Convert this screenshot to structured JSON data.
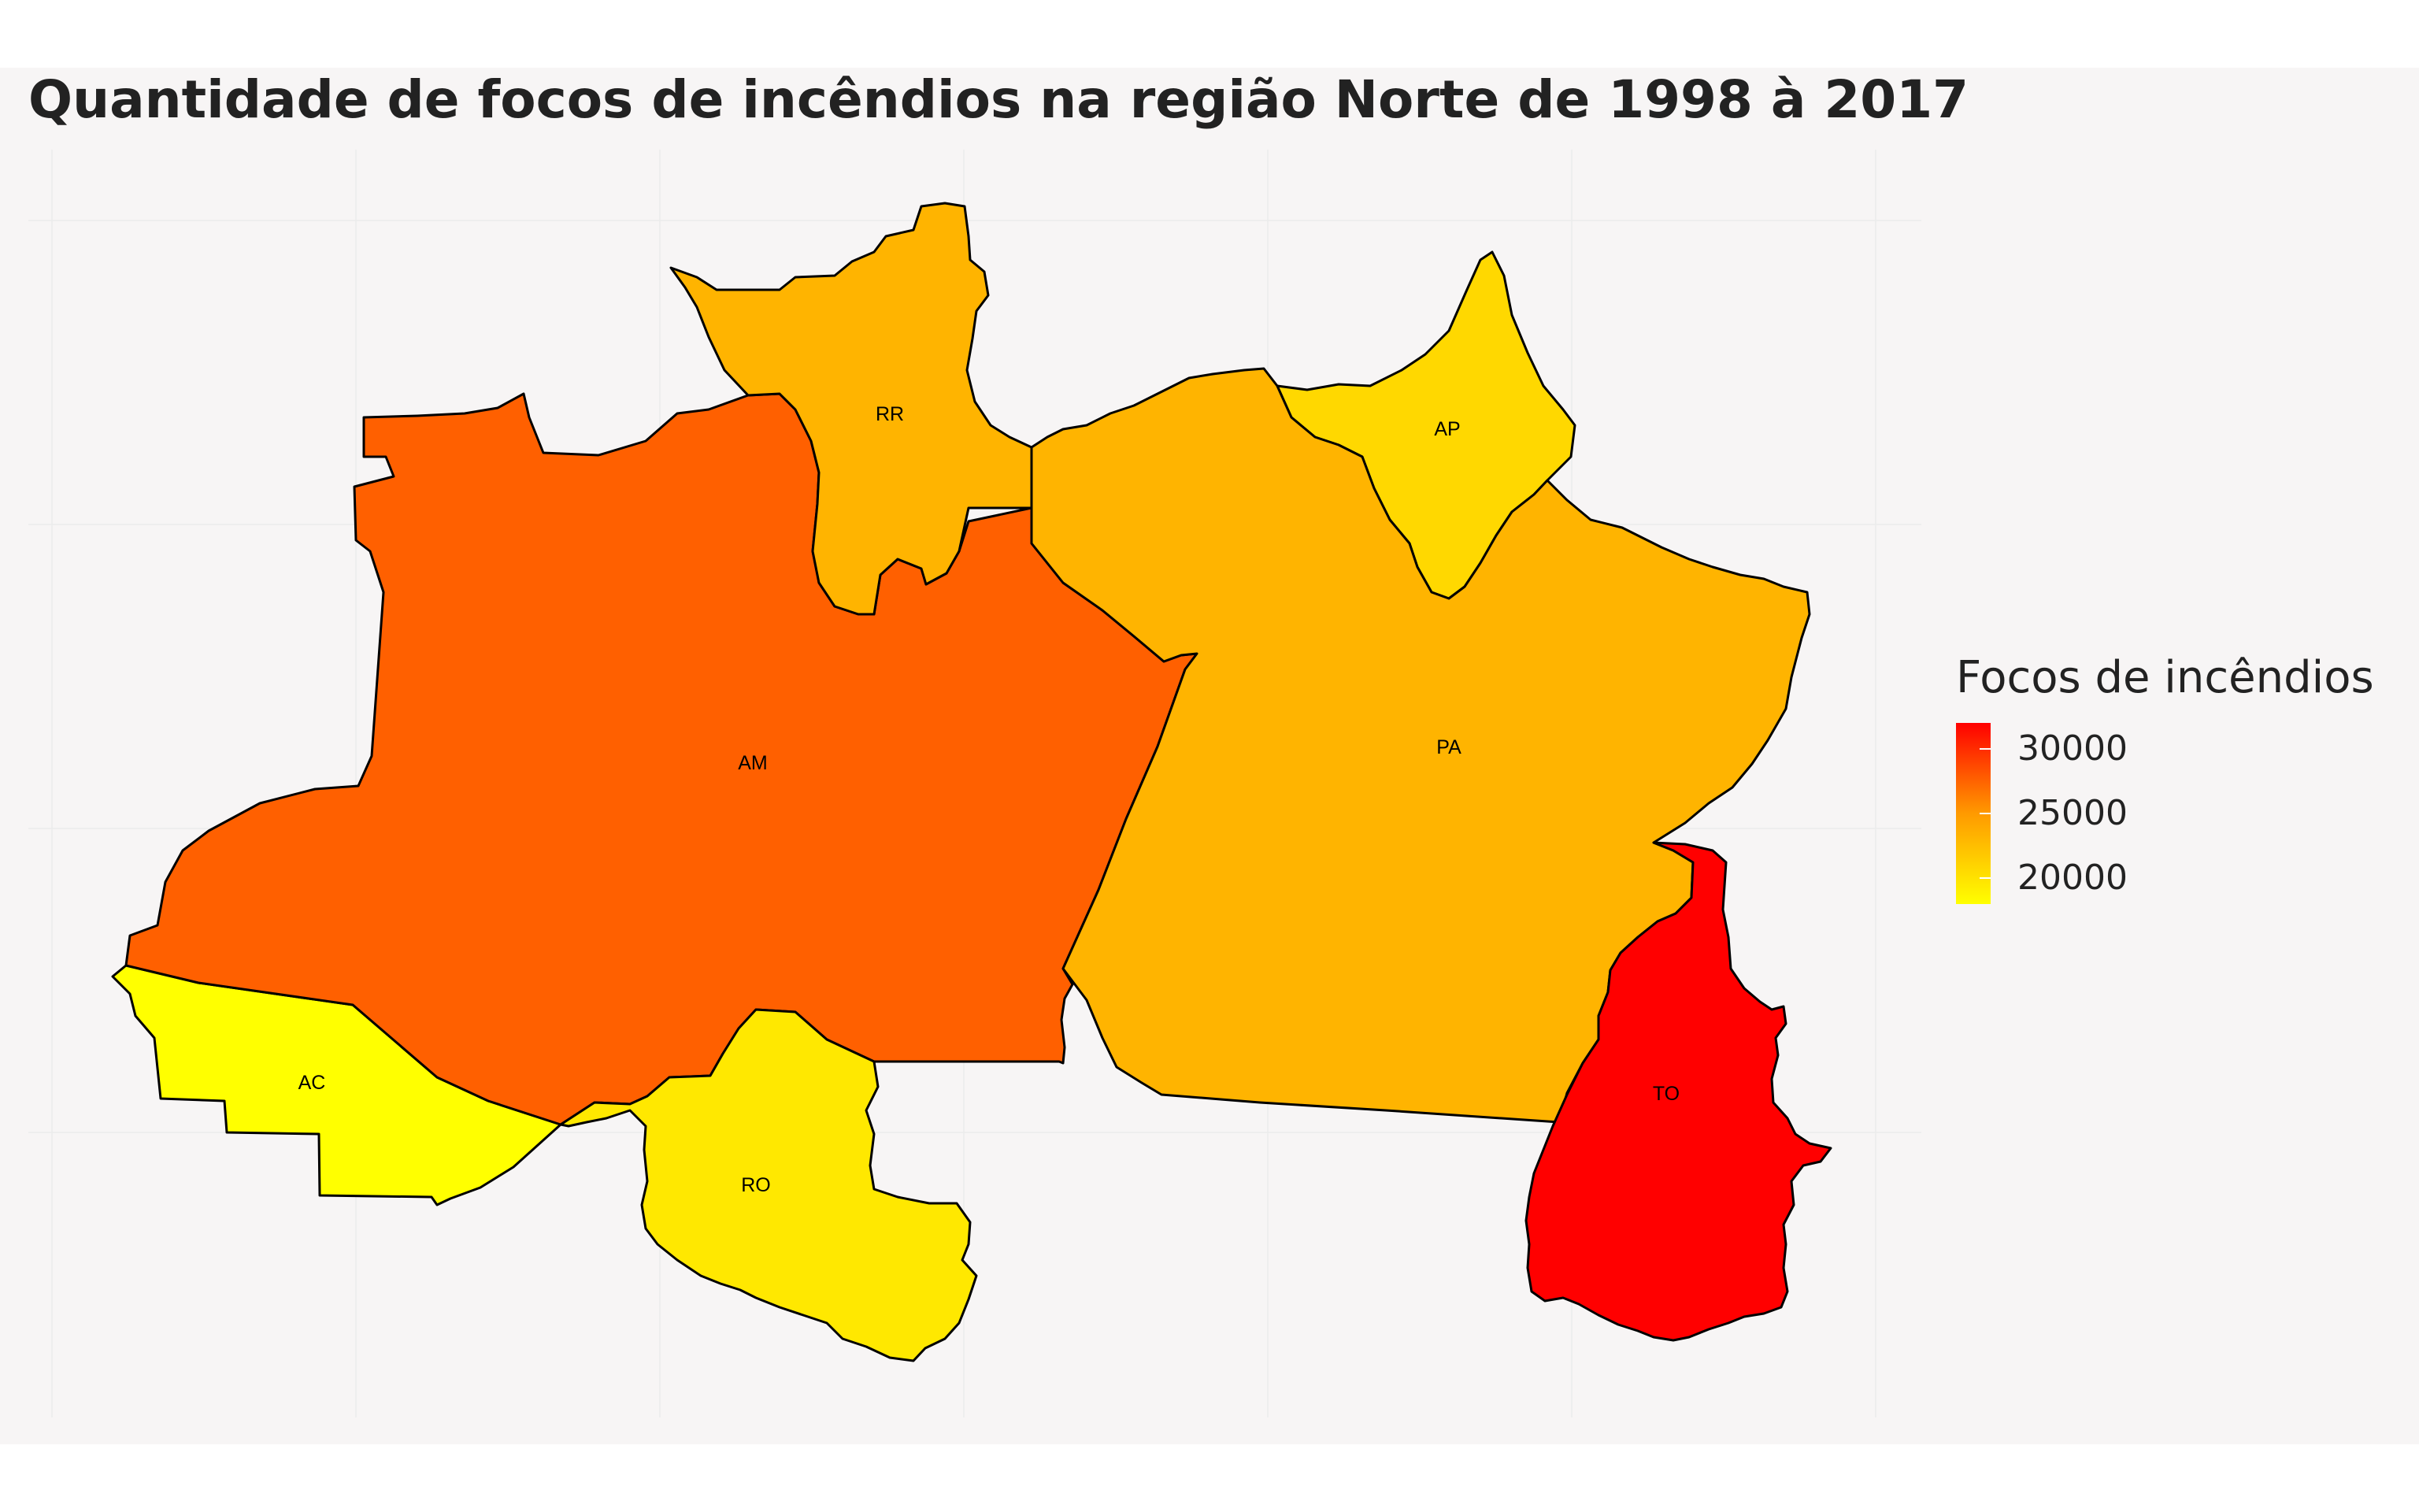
{
  "title": "Quantidade de focos de incêndios na região Norte de 1998 à 2017",
  "legend": {
    "title": "Focos de incêndios",
    "ticks": [
      30000,
      25000,
      20000
    ],
    "range": [
      18000,
      32000
    ],
    "colors": [
      "#ffff00",
      "#ff0000"
    ]
  },
  "regions": [
    {
      "id": "AC",
      "label": "AC",
      "color": "#ffff00"
    },
    {
      "id": "AM",
      "label": "AM",
      "color": "#ff6000"
    },
    {
      "id": "RR",
      "label": "RR",
      "color": "#ffb400"
    },
    {
      "id": "AP",
      "label": "AP",
      "color": "#ffd800"
    },
    {
      "id": "PA",
      "label": "PA",
      "color": "#ffb400"
    },
    {
      "id": "RO",
      "label": "RO",
      "color": "#ffe800"
    },
    {
      "id": "TO",
      "label": "TO",
      "color": "#ff0000"
    }
  ]
}
